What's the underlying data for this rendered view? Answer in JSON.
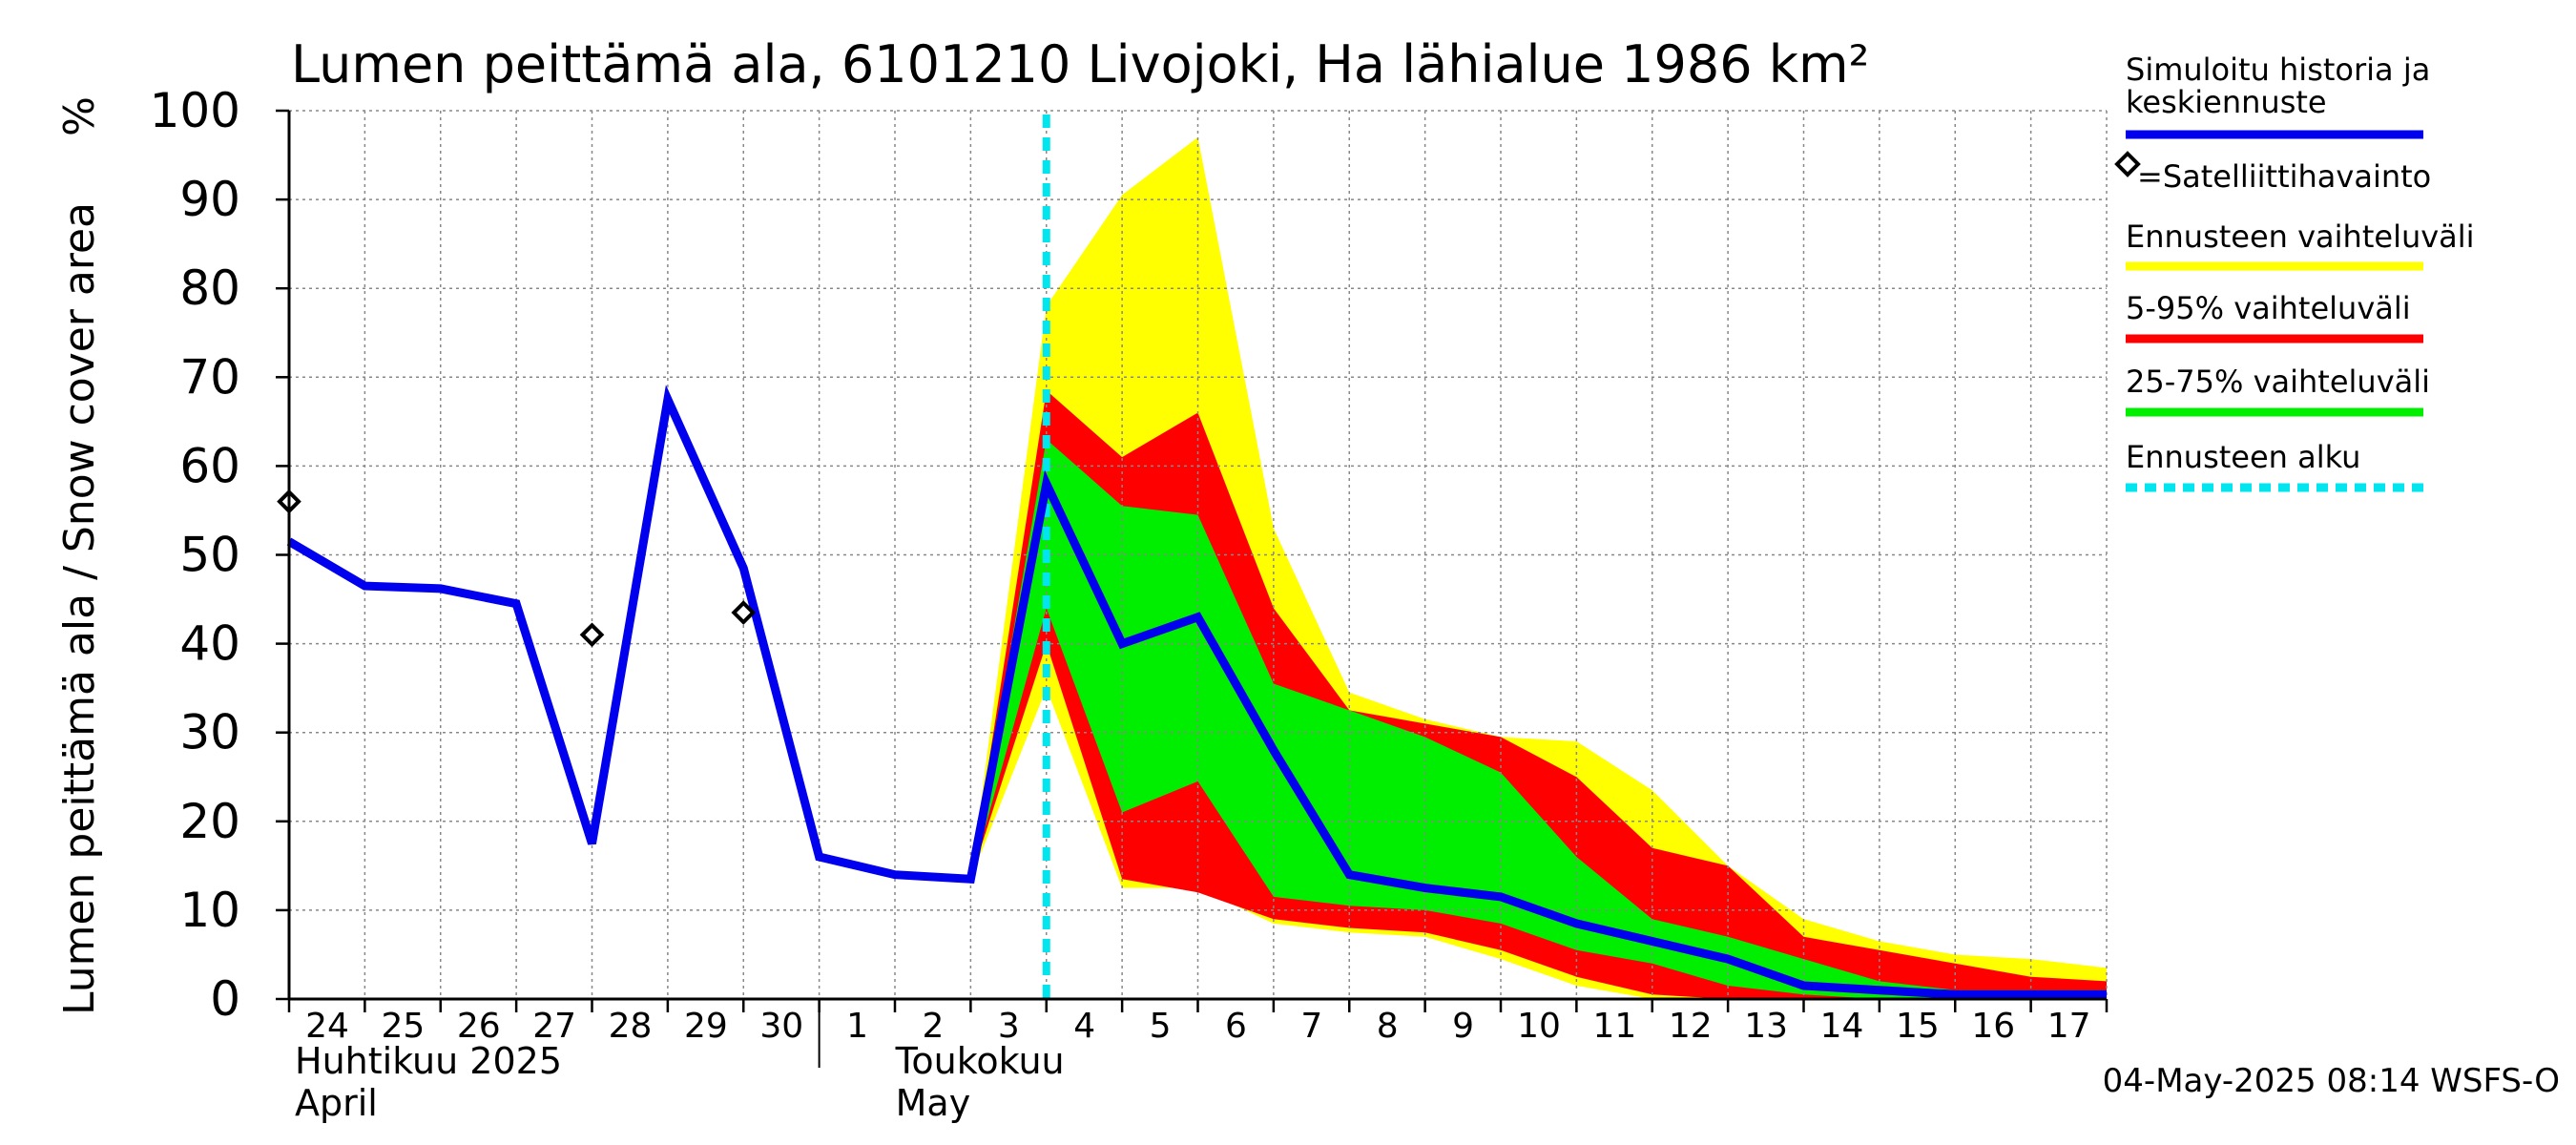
{
  "chart_data": {
    "type": "area",
    "title": "Lumen peittämä ala, 6101210 Livojoki, Ha lähialue 1986 km²",
    "ylabel": "Lumen peittämä ala / Snow cover area",
    "yunit": "%",
    "ylim": [
      0,
      100
    ],
    "yticks": [
      0,
      10,
      20,
      30,
      40,
      50,
      60,
      70,
      80,
      90,
      100
    ],
    "grid": true,
    "x_dates": [
      "2025-04-24",
      "2025-04-25",
      "2025-04-26",
      "2025-04-27",
      "2025-04-28",
      "2025-04-29",
      "2025-04-30",
      "2025-05-01",
      "2025-05-02",
      "2025-05-03",
      "2025-05-04",
      "2025-05-05",
      "2025-05-06",
      "2025-05-07",
      "2025-05-08",
      "2025-05-09",
      "2025-05-10",
      "2025-05-11",
      "2025-05-12",
      "2025-05-13",
      "2025-05-14",
      "2025-05-15",
      "2025-05-16",
      "2025-05-17",
      "2025-05-18"
    ],
    "x_tick_labels": [
      "24",
      "25",
      "26",
      "27",
      "28",
      "29",
      "30",
      "1",
      "2",
      "3",
      "4",
      "5",
      "6",
      "7",
      "8",
      "9",
      "10",
      "11",
      "12",
      "13",
      "14",
      "15",
      "16",
      "17"
    ],
    "month_labels": [
      {
        "fi": "Huhtikuu  2025",
        "en": "April"
      },
      {
        "fi": "Toukokuu",
        "en": "May"
      }
    ],
    "forecast_start": "2025-05-04",
    "series": [
      {
        "name": "Simuloitu historia ja keskiennuste",
        "color": "#0000ee",
        "x": [
          "2025-04-24",
          "2025-04-25",
          "2025-04-26",
          "2025-04-27",
          "2025-04-28",
          "2025-04-29",
          "2025-04-30",
          "2025-05-01",
          "2025-05-02",
          "2025-05-03",
          "2025-05-04",
          "2025-05-05",
          "2025-05-06",
          "2025-05-07",
          "2025-05-08",
          "2025-05-09",
          "2025-05-10",
          "2025-05-11",
          "2025-05-12",
          "2025-05-13",
          "2025-05-14",
          "2025-05-15",
          "2025-05-16",
          "2025-05-17",
          "2025-05-18"
        ],
        "values": [
          51.5,
          46.5,
          46.2,
          44.5,
          17.5,
          67.5,
          48.5,
          16.0,
          14.0,
          13.5,
          58.0,
          40.0,
          43.0,
          28.0,
          14.0,
          12.5,
          11.5,
          8.5,
          6.5,
          4.5,
          1.5,
          1.0,
          0.5,
          0.5,
          0.5
        ]
      },
      {
        "name": "=Satelliittihavainto",
        "type": "scatter",
        "x": [
          "2025-04-24",
          "2025-04-28",
          "2025-04-30"
        ],
        "values": [
          56.0,
          41.0,
          43.5
        ]
      }
    ],
    "bands": [
      {
        "name": "Ennusteen vaihteluväli",
        "color": "#ffff00",
        "x": [
          "2025-05-03",
          "2025-05-04",
          "2025-05-05",
          "2025-05-06",
          "2025-05-07",
          "2025-05-08",
          "2025-05-09",
          "2025-05-10",
          "2025-05-11",
          "2025-05-12",
          "2025-05-13",
          "2025-05-14",
          "2025-05-15",
          "2025-05-16",
          "2025-05-17",
          "2025-05-18"
        ],
        "lower": [
          13.5,
          35.0,
          12.5,
          12.5,
          8.5,
          7.5,
          7.0,
          4.5,
          1.5,
          0,
          0,
          0,
          0,
          0,
          0,
          0
        ],
        "upper": [
          13.5,
          78.0,
          90.5,
          97.0,
          53.0,
          34.5,
          31.5,
          29.5,
          29.0,
          23.5,
          15.0,
          9.0,
          6.5,
          5.0,
          4.5,
          3.5
        ]
      },
      {
        "name": "5-95% vaihteluväli",
        "color": "#ff0000",
        "x": [
          "2025-05-03",
          "2025-05-04",
          "2025-05-05",
          "2025-05-06",
          "2025-05-07",
          "2025-05-08",
          "2025-05-09",
          "2025-05-10",
          "2025-05-11",
          "2025-05-12",
          "2025-05-13",
          "2025-05-14",
          "2025-05-15",
          "2025-05-16",
          "2025-05-17",
          "2025-05-18"
        ],
        "lower": [
          13.5,
          40.0,
          13.5,
          12.0,
          9.0,
          8.0,
          7.5,
          5.5,
          2.5,
          0.5,
          0,
          0,
          0,
          0,
          0,
          0
        ],
        "upper": [
          13.5,
          68.5,
          61.0,
          66.0,
          44.0,
          32.5,
          31.0,
          29.5,
          25.0,
          17.0,
          15.0,
          7.0,
          5.5,
          4.0,
          2.5,
          2.0
        ]
      },
      {
        "name": "25-75% vaihteluväli",
        "color": "#00ee00",
        "x": [
          "2025-05-03",
          "2025-05-04",
          "2025-05-05",
          "2025-05-06",
          "2025-05-07",
          "2025-05-08",
          "2025-05-09",
          "2025-05-10",
          "2025-05-11",
          "2025-05-12",
          "2025-05-13",
          "2025-05-14",
          "2025-05-15",
          "2025-05-16",
          "2025-05-17",
          "2025-05-18"
        ],
        "lower": [
          13.5,
          44.0,
          21.0,
          24.5,
          11.5,
          10.5,
          10.0,
          8.5,
          5.5,
          4.0,
          1.5,
          0.5,
          0,
          0,
          0,
          0
        ],
        "upper": [
          13.5,
          63.0,
          55.5,
          54.5,
          35.5,
          32.5,
          29.5,
          25.5,
          16.0,
          9.0,
          7.0,
          4.5,
          2.0,
          1.0,
          1.0,
          1.0
        ]
      }
    ],
    "legend": {
      "placement": "right",
      "entries": [
        {
          "label": "Simuloitu historia ja keskiennuste",
          "color": "#0000ee",
          "style": "line"
        },
        {
          "label": "=Satelliittihavainto",
          "color": "#000000",
          "style": "diamond"
        },
        {
          "label": "Ennusteen vaihteluväli",
          "color": "#ffff00",
          "style": "line"
        },
        {
          "label": "5-95% vaihteluväli",
          "color": "#ff0000",
          "style": "line"
        },
        {
          "label": "25-75% vaihteluväli",
          "color": "#00ee00",
          "style": "line"
        },
        {
          "label": "Ennusteen alku",
          "color": "#00e5ee",
          "style": "dashed"
        }
      ]
    },
    "footer": "04-May-2025 08:14 WSFS-O"
  }
}
